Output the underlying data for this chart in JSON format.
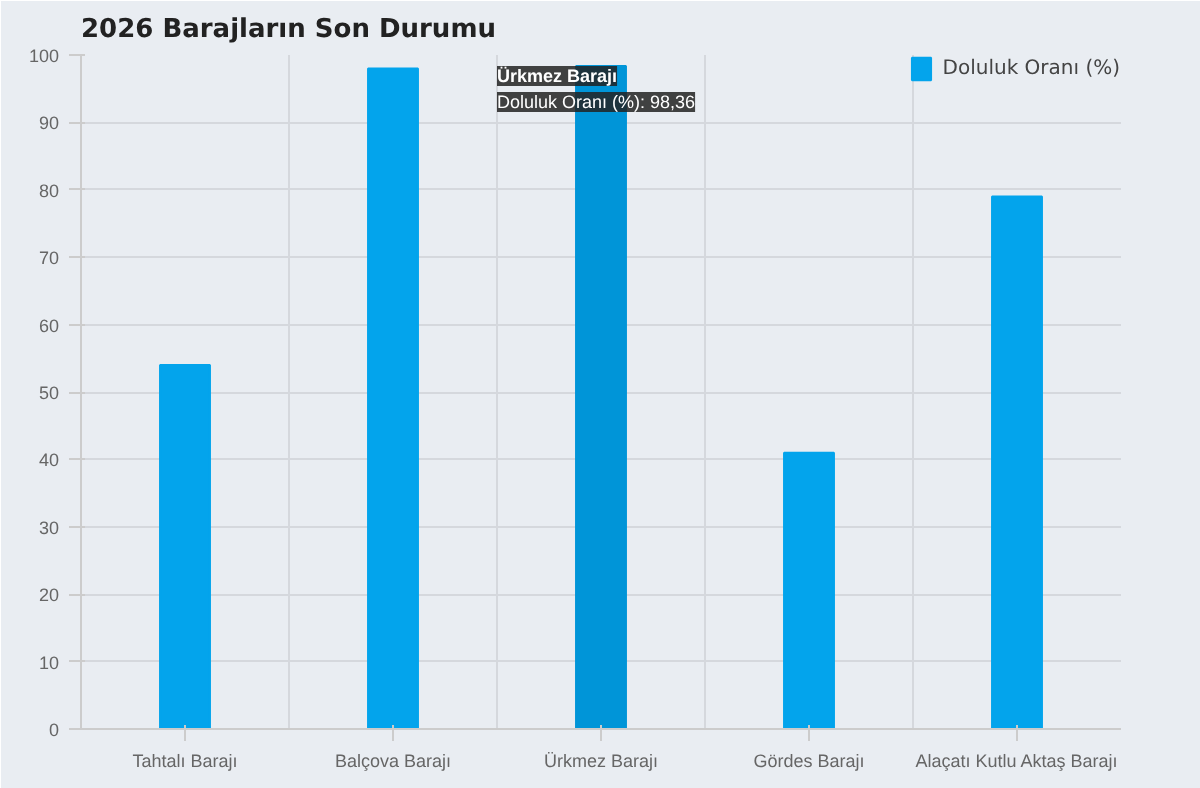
{
  "chart_data": {
    "type": "bar",
    "title": "2026 Barajların Son Durumu",
    "categories": [
      "Tahtalı Barajı",
      "Balçova Barajı",
      "Ürkmez Barajı",
      "Gördes Barajı",
      "Alaçatı Kutlu Aktaş Barajı"
    ],
    "series": [
      {
        "name": "Doluluk Oranı (%)",
        "color": "#03a4ec",
        "colors": [
          null,
          null,
          "#0095d8",
          null,
          null
        ],
        "values": [
          54,
          98,
          98.36,
          41,
          79
        ]
      }
    ],
    "ylim": [
      0,
      100
    ],
    "yticks": [
      0,
      10,
      20,
      30,
      40,
      50,
      60,
      70,
      80,
      90,
      100
    ],
    "grid": true,
    "legend": "top right",
    "annotations": [
      {
        "text": "Ürkmez Barajı\nDoluluk Oranı (%): 98,36",
        "x": "Ürkmez Barajı",
        "y": 98.36
      }
    ]
  }
}
